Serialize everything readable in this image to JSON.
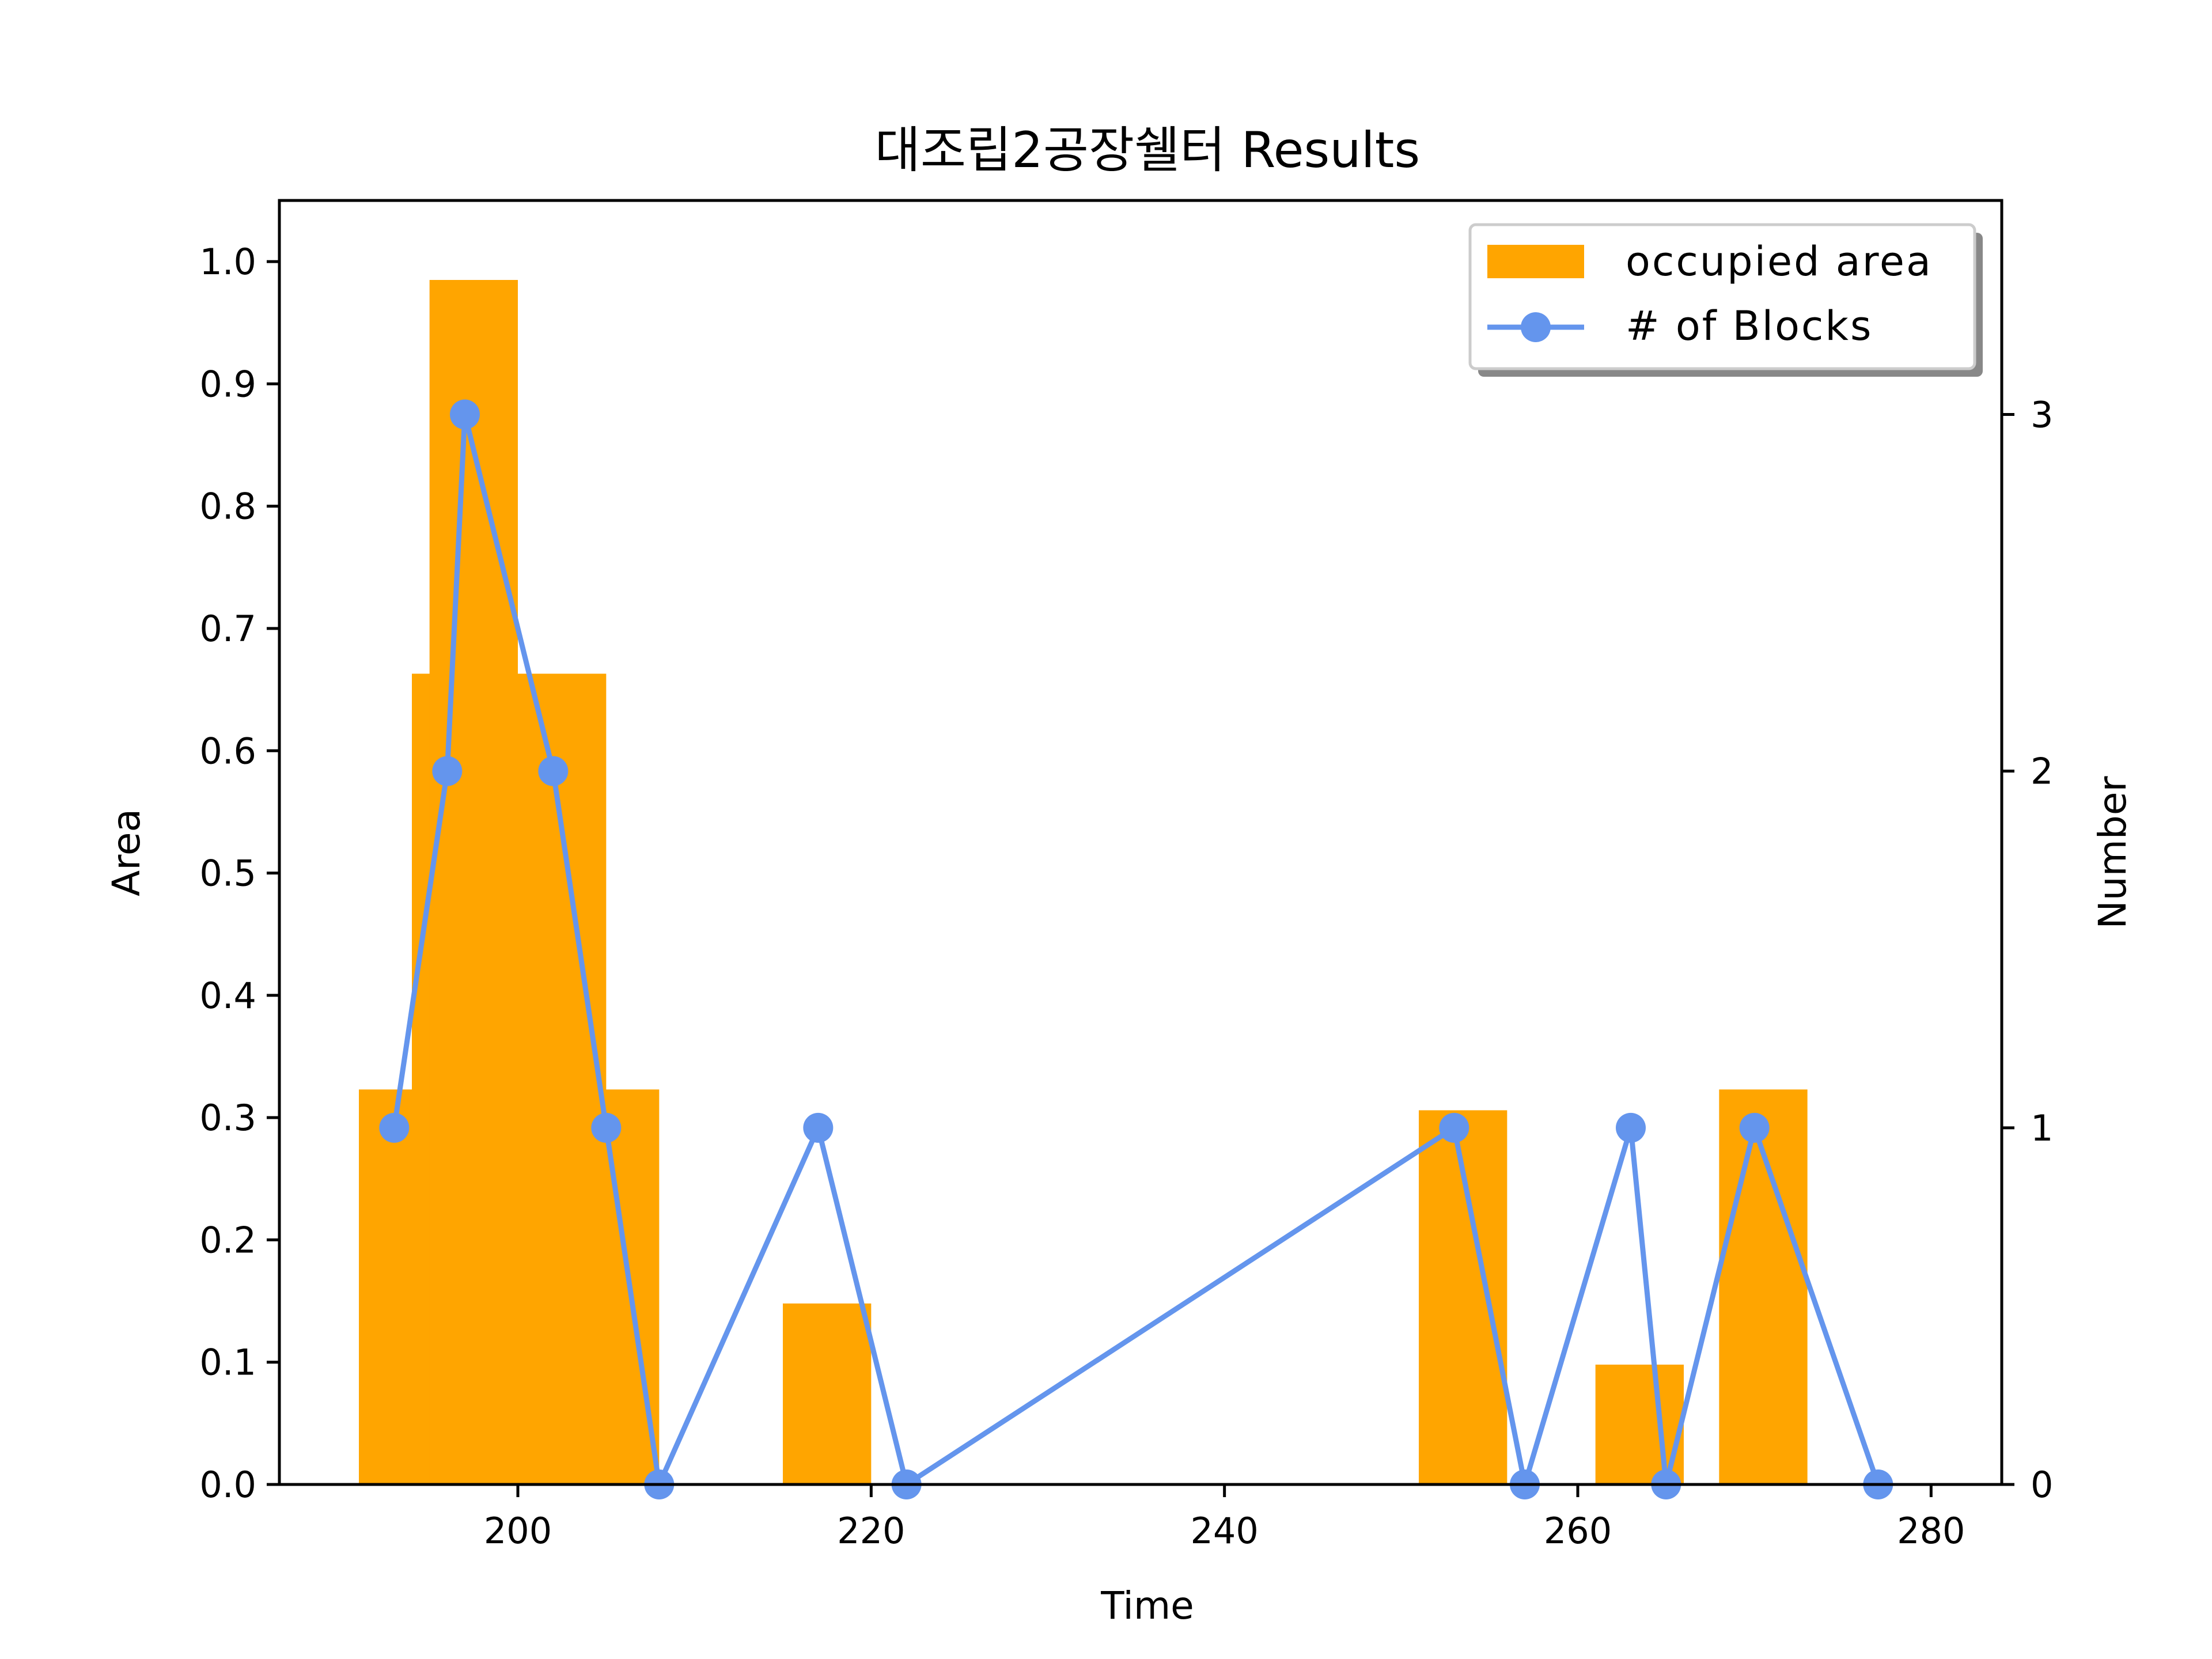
{
  "colors": {
    "bar": "#FFA500",
    "line": "#6495ED",
    "axis": "#000000",
    "background": "#ffffff"
  },
  "chart_data": {
    "type": "bar",
    "title": "대조립2공장쉘터 Results",
    "xlabel": "Time",
    "ylabel": "Area",
    "y2label": "Number",
    "xlim": [
      186.5,
      284
    ],
    "ylim": [
      0,
      1.05
    ],
    "y2lim": [
      0,
      3.6
    ],
    "grid": false,
    "legend_position": "top-right",
    "x_ticks": [
      {
        "value": 200,
        "label": "200"
      },
      {
        "value": 220,
        "label": "220"
      },
      {
        "value": 240,
        "label": "240"
      },
      {
        "value": 260,
        "label": "260"
      },
      {
        "value": 280,
        "label": "280"
      }
    ],
    "y_ticks": [
      {
        "value": 0.0,
        "label": "0.0"
      },
      {
        "value": 0.1,
        "label": "0.1"
      },
      {
        "value": 0.2,
        "label": "0.2"
      },
      {
        "value": 0.3,
        "label": "0.3"
      },
      {
        "value": 0.4,
        "label": "0.4"
      },
      {
        "value": 0.5,
        "label": "0.5"
      },
      {
        "value": 0.6,
        "label": "0.6"
      },
      {
        "value": 0.7,
        "label": "0.7"
      },
      {
        "value": 0.8,
        "label": "0.8"
      },
      {
        "value": 0.9,
        "label": "0.9"
      },
      {
        "value": 1.0,
        "label": "1.0"
      }
    ],
    "y2_ticks": [
      {
        "value": 0,
        "label": "0"
      },
      {
        "value": 1,
        "label": "1"
      },
      {
        "value": 2,
        "label": "2"
      },
      {
        "value": 3,
        "label": "3"
      }
    ],
    "series": [
      {
        "name": "occupied area",
        "kind": "bar",
        "axis": "left",
        "bars": [
          {
            "x0": 191.0,
            "x1": 196.0,
            "value": 0.323
          },
          {
            "x0": 194.0,
            "x1": 199.0,
            "value": 0.663
          },
          {
            "x0": 195.0,
            "x1": 200.0,
            "value": 0.985
          },
          {
            "x0": 200.0,
            "x1": 205.0,
            "value": 0.663
          },
          {
            "x0": 203.0,
            "x1": 208.0,
            "value": 0.323
          },
          {
            "x0": 215.0,
            "x1": 220.0,
            "value": 0.148
          },
          {
            "x0": 251.0,
            "x1": 256.0,
            "value": 0.306
          },
          {
            "x0": 261.0,
            "x1": 266.0,
            "value": 0.098
          },
          {
            "x0": 268.0,
            "x1": 273.0,
            "value": 0.323
          }
        ]
      },
      {
        "name": "# of Blocks",
        "kind": "line",
        "axis": "right",
        "points": [
          {
            "x": 193.0,
            "y": 1
          },
          {
            "x": 196.0,
            "y": 2
          },
          {
            "x": 197.0,
            "y": 3
          },
          {
            "x": 202.0,
            "y": 2
          },
          {
            "x": 205.0,
            "y": 1
          },
          {
            "x": 208.0,
            "y": 0
          },
          {
            "x": 217.0,
            "y": 1
          },
          {
            "x": 222.0,
            "y": 0
          },
          {
            "x": 253.0,
            "y": 1
          },
          {
            "x": 257.0,
            "y": 0
          },
          {
            "x": 263.0,
            "y": 1
          },
          {
            "x": 265.0,
            "y": 0
          },
          {
            "x": 270.0,
            "y": 1
          },
          {
            "x": 277.0,
            "y": 0
          }
        ]
      }
    ]
  }
}
